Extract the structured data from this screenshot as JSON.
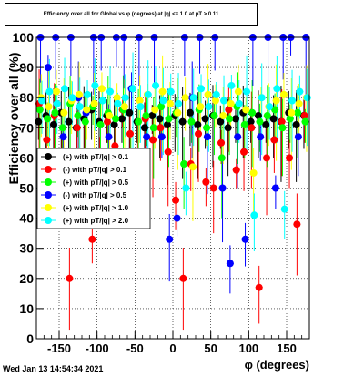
{
  "window": {
    "title": "Efficiency over all for Global vs φ (degrees) at |η| <= 1.0 at pT > 0.11",
    "timestamp": "Wed Jan 13 14:54:34 2021"
  },
  "chart_data": {
    "type": "scatter",
    "title": "Efficiency over all for Global vs φ (degrees) at |η| <= 1.0 at pT > 0.11",
    "xlabel": "φ (degrees)",
    "ylabel": "Efficiency over all (%)",
    "xlim": [
      -180,
      180
    ],
    "ylim": [
      0,
      100
    ],
    "xticks": [
      -150,
      -100,
      -50,
      0,
      50,
      100,
      150
    ],
    "yticks": [
      0,
      10,
      20,
      30,
      40,
      50,
      60,
      70,
      80,
      90,
      100
    ],
    "grid": true,
    "legend_position": "left-middle",
    "series": [
      {
        "name": "(+) with pT/|q| > 0.1",
        "color": "#000000",
        "x": [
          -175,
          -165,
          -155,
          -145,
          -135,
          -125,
          -115,
          -105,
          -95,
          -85,
          -75,
          -65,
          -55,
          -45,
          -35,
          -25,
          -15,
          -5,
          5,
          15,
          25,
          35,
          45,
          55,
          65,
          75,
          85,
          95,
          105,
          115,
          125,
          135,
          145,
          155,
          165,
          175
        ],
        "y": [
          72,
          74,
          71,
          75,
          72,
          70,
          73,
          76,
          72,
          74,
          71,
          73,
          75,
          72,
          70,
          74,
          73,
          71,
          74,
          72,
          75,
          71,
          73,
          74,
          72,
          70,
          73,
          75,
          72,
          74,
          71,
          73,
          72,
          75,
          71,
          74
        ]
      },
      {
        "name": "(-) with pT/|q| > 0.1",
        "color": "#ff0000",
        "x": [
          -175,
          -165,
          -155,
          -145,
          -135,
          -125,
          -115,
          -105,
          -95,
          -85,
          -75,
          -65,
          -55,
          -45,
          -35,
          -25,
          -15,
          -5,
          5,
          15,
          25,
          35,
          45,
          55,
          65,
          75,
          85,
          95,
          105,
          115,
          125,
          135,
          145,
          155,
          165,
          175
        ],
        "y": [
          78,
          66,
          74,
          60,
          20,
          70,
          62,
          33,
          58,
          72,
          64,
          76,
          68,
          60,
          73,
          66,
          70,
          62,
          46,
          20,
          58,
          68,
          52,
          50,
          65,
          76,
          56,
          62,
          70,
          17,
          60,
          66,
          72,
          60,
          38,
          74
        ]
      },
      {
        "name": "(+) with pT/|q| > 0.5",
        "color": "#00ff00",
        "x": [
          -175,
          -165,
          -155,
          -145,
          -135,
          -125,
          -115,
          -105,
          -95,
          -85,
          -75,
          -65,
          -55,
          -45,
          -35,
          -25,
          -15,
          -5,
          5,
          15,
          25,
          35,
          45,
          55,
          65,
          75,
          85,
          95,
          105,
          115,
          125,
          135,
          145,
          155,
          165,
          175
        ],
        "y": [
          76,
          73,
          75,
          70,
          78,
          74,
          72,
          77,
          71,
          75,
          73,
          76,
          60,
          72,
          74,
          70,
          77,
          73,
          75,
          58,
          72,
          76,
          70,
          74,
          60,
          73,
          77,
          71,
          75,
          72,
          74,
          76,
          70,
          73,
          75,
          72
        ]
      },
      {
        "name": "(-) with pT/|q| > 0.5",
        "color": "#0000ff",
        "x": [
          -175,
          -165,
          -155,
          -145,
          -135,
          -125,
          -115,
          -105,
          -95,
          -85,
          -75,
          -65,
          -55,
          -45,
          -35,
          -25,
          -15,
          -5,
          5,
          15,
          25,
          35,
          45,
          55,
          65,
          75,
          85,
          95,
          105,
          115,
          125,
          135,
          145,
          155,
          165,
          175
        ],
        "y": [
          100,
          90,
          100,
          67,
          100,
          80,
          75,
          100,
          100,
          67,
          100,
          100,
          83,
          100,
          67,
          100,
          67,
          33,
          40,
          100,
          80,
          100,
          67,
          100,
          50,
          25,
          67,
          33,
          100,
          67,
          100,
          50,
          100,
          100,
          67,
          100
        ],
        "markers_only_top": true
      },
      {
        "name": "(+) with pT/|q| > 1.0",
        "color": "#ffff00",
        "x": [
          -175,
          -165,
          -155,
          -145,
          -135,
          -125,
          -115,
          -105,
          -95,
          -85,
          -75,
          -65,
          -55,
          -45,
          -35,
          -25,
          -15,
          -5,
          5,
          15,
          25,
          35,
          45,
          55,
          65,
          75,
          85,
          95,
          105,
          115,
          125,
          135,
          145,
          155,
          165,
          175
        ],
        "y": [
          80,
          77,
          82,
          75,
          79,
          81,
          76,
          78,
          83,
          74,
          80,
          77,
          55,
          79,
          81,
          76,
          82,
          78,
          75,
          80,
          57,
          77,
          81,
          79,
          74,
          78,
          82,
          76,
          55,
          80,
          77,
          79,
          81,
          75,
          78,
          80
        ]
      },
      {
        "name": "(+) with pT/|q| > 2.0",
        "color": "#00ffff",
        "x": [
          -175,
          -165,
          -155,
          -145,
          -135,
          -125,
          -115,
          -105,
          -95,
          -85,
          -75,
          -65,
          -55,
          -45,
          -35,
          -25,
          -15,
          -5,
          5,
          15,
          25,
          35,
          45,
          55,
          65,
          75,
          85,
          95,
          105,
          115,
          125,
          135,
          145,
          155,
          165,
          175
        ],
        "y": [
          79,
          82,
          78,
          83,
          80,
          77,
          81,
          84,
          79,
          82,
          78,
          80,
          83,
          77,
          81,
          84,
          79,
          82,
          78,
          50,
          80,
          83,
          77,
          81,
          79,
          84,
          78,
          82,
          41,
          80,
          77,
          83,
          43,
          79,
          82,
          80
        ]
      }
    ]
  }
}
